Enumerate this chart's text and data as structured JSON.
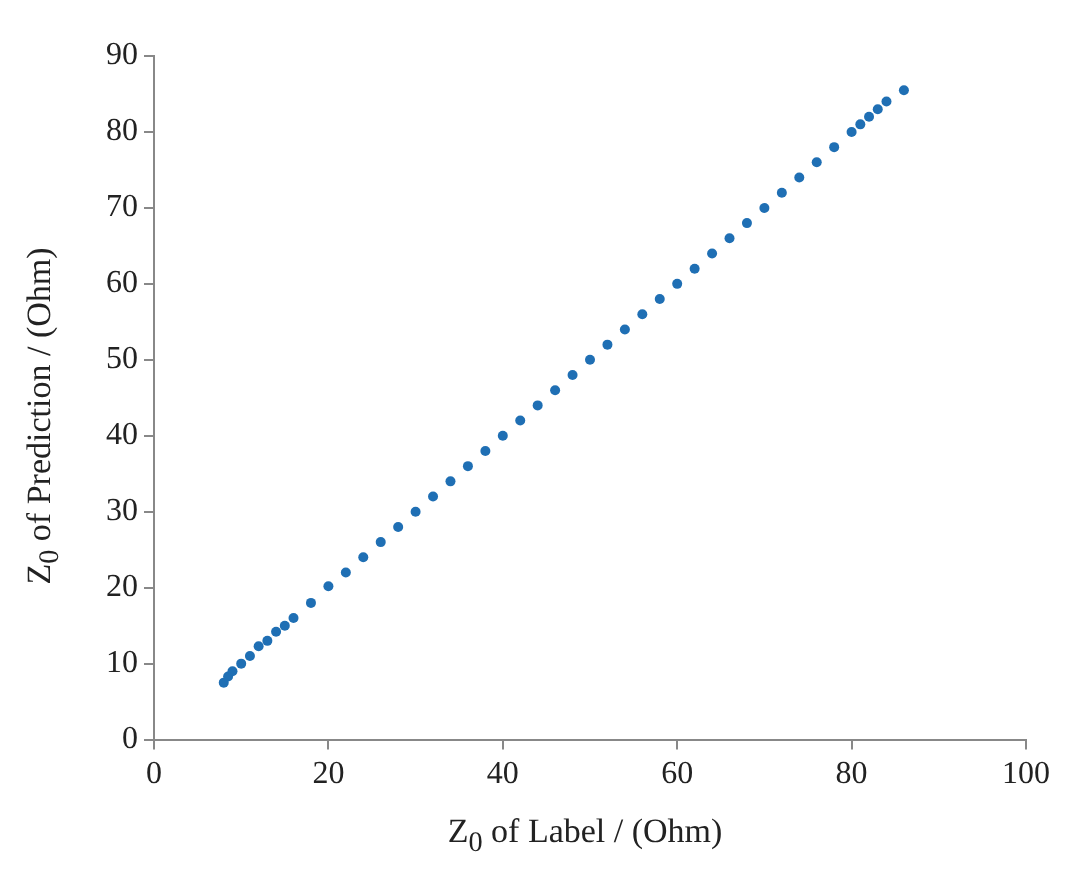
{
  "chart_data": {
    "type": "scatter",
    "xlabel": "Z$_{0}$ of Label / (Ohm)",
    "ylabel": "Z$_{0}$ of Prediction / (Ohm)",
    "xlim": [
      0,
      100
    ],
    "ylim": [
      0,
      90
    ],
    "xticks": [
      0,
      20,
      40,
      60,
      80,
      100
    ],
    "yticks": [
      0,
      10,
      20,
      30,
      40,
      50,
      60,
      70,
      80,
      90
    ],
    "grid": false,
    "marker": "circle",
    "series": [
      {
        "color": "#1f6fb4",
        "x": [
          8,
          8.5,
          9,
          10,
          11,
          12,
          13,
          14,
          15,
          16,
          18,
          20,
          22,
          24,
          26,
          28,
          30,
          32,
          34,
          36,
          38,
          40,
          42,
          44,
          46,
          48,
          50,
          52,
          54,
          56,
          58,
          60,
          62,
          64,
          66,
          68,
          70,
          72,
          74,
          76,
          78,
          80,
          81,
          82,
          83,
          84,
          86
        ],
        "values": [
          7.5,
          8.3,
          9,
          10,
          11,
          12.3,
          13,
          14.2,
          15,
          16,
          18,
          20.2,
          22,
          24,
          26,
          28,
          30,
          32,
          34,
          36,
          38,
          40,
          42,
          44,
          46,
          48,
          50,
          52,
          54,
          56,
          58,
          60,
          62,
          64,
          66,
          68,
          70,
          72,
          74,
          76,
          78,
          80,
          81,
          82,
          83,
          84,
          85.5
        ]
      }
    ]
  }
}
